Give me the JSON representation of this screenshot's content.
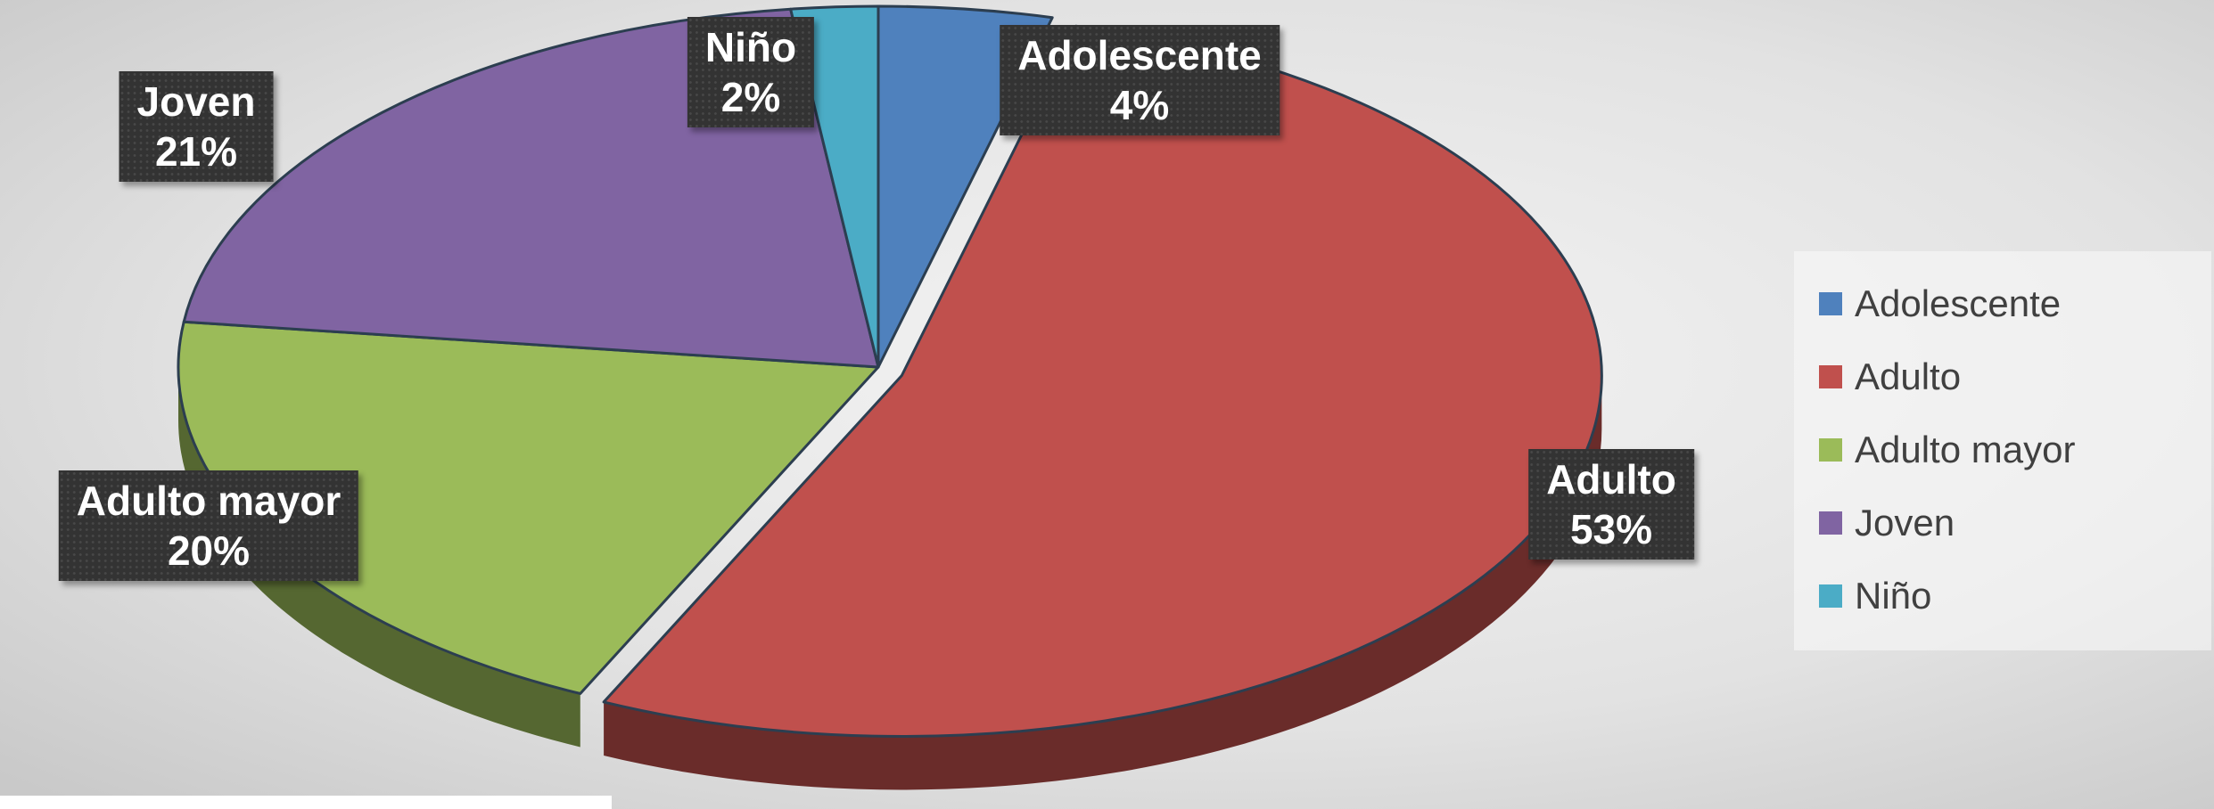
{
  "chart_data": {
    "type": "pie",
    "categories": [
      "Adolescente",
      "Adulto",
      "Adulto mayor",
      "Joven",
      "Niño"
    ],
    "values": [
      4,
      53,
      20,
      21,
      2
    ],
    "value_labels": [
      "4%",
      "53%",
      "20%",
      "21%",
      "2%"
    ],
    "colors": [
      "#4F81BD",
      "#C0504D",
      "#9BBB59",
      "#8064A2",
      "#4BACC6"
    ],
    "legend_position": "right",
    "title": "",
    "style": "3d-exploded"
  },
  "legend": {
    "items": [
      {
        "label": "Adolescente",
        "color": "#4F81BD"
      },
      {
        "label": "Adulto",
        "color": "#C0504D"
      },
      {
        "label": "Adulto mayor",
        "color": "#9BBB59"
      },
      {
        "label": "Joven",
        "color": "#8064A2"
      },
      {
        "label": "Niño",
        "color": "#4BACC6"
      }
    ]
  }
}
